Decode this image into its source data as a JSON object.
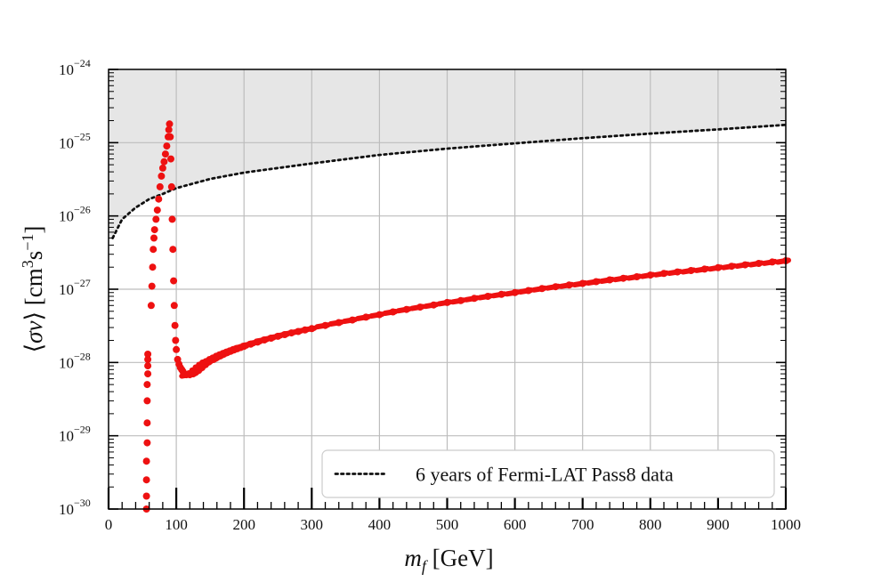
{
  "chart_data": {
    "type": "scatter",
    "title": "",
    "xlabel": "m_f [GeV]",
    "ylabel": "⟨σv⟩ [cm^3 s^-1]",
    "xlim": [
      0,
      1000
    ],
    "ylim": [
      1e-30,
      1e-24
    ],
    "yscale": "log",
    "grid": true,
    "x_ticks": [
      0,
      100,
      200,
      300,
      400,
      500,
      600,
      700,
      800,
      900,
      1000
    ],
    "y_tick_exponents": [
      -30,
      -29,
      -28,
      -27,
      -26,
      -25,
      -24
    ],
    "legend": {
      "placement": "lower-right",
      "entries": [
        "6 years of Fermi-LAT Pass8 data"
      ]
    },
    "colors": {
      "scan_points": "#ee1111",
      "limit_line": "#111111",
      "excluded_region": "#e6e6e6",
      "grid": "#bdbdbd"
    },
    "series": [
      {
        "name": "6 years of Fermi-LAT Pass8 data",
        "style": "dotted-line-with-shaded-excluded-region-above",
        "x": [
          6,
          20,
          40,
          60,
          80,
          100,
          150,
          200,
          300,
          400,
          500,
          600,
          700,
          800,
          900,
          1000
        ],
        "y": [
          5e-27,
          9e-27,
          1.3e-26,
          1.7e-26,
          2e-26,
          2.4e-26,
          3.2e-26,
          3.9e-26,
          5.2e-26,
          6.8e-26,
          8.3e-26,
          9.8e-26,
          1.15e-25,
          1.33e-25,
          1.52e-25,
          1.75e-25
        ]
      },
      {
        "style": "scatter",
        "x": [
          56,
          56,
          56,
          56,
          57,
          57,
          57,
          57,
          58,
          58,
          58,
          58,
          63,
          64,
          65,
          66,
          67,
          68,
          70,
          72,
          74,
          76,
          78,
          80,
          82,
          84,
          86,
          88,
          89,
          90,
          91,
          92,
          93,
          94,
          95,
          96,
          97,
          98,
          99,
          100,
          102,
          104,
          106,
          108,
          110,
          112,
          115,
          120,
          125,
          130,
          135,
          140,
          145,
          150,
          155,
          160,
          165,
          170,
          175,
          180,
          185,
          190,
          195,
          200,
          210,
          220,
          230,
          240,
          250,
          260,
          270,
          280,
          290,
          300,
          320,
          340,
          360,
          380,
          400,
          420,
          440,
          460,
          480,
          500,
          520,
          540,
          560,
          580,
          600,
          620,
          640,
          660,
          680,
          700,
          720,
          740,
          760,
          780,
          800,
          820,
          840,
          860,
          880,
          900,
          920,
          940,
          960,
          980,
          1000
        ],
        "y": [
          1e-30,
          1.5e-30,
          2.5e-30,
          4.5e-30,
          8e-30,
          1.5e-29,
          3e-29,
          5e-29,
          7e-29,
          9e-29,
          1.1e-28,
          1.3e-28,
          6e-28,
          1.1e-27,
          2e-27,
          3.5e-27,
          5e-27,
          6.5e-27,
          9e-27,
          1.2e-26,
          1.7e-26,
          2.5e-26,
          3.5e-26,
          4.5e-26,
          5.5e-26,
          7e-26,
          9e-26,
          1.2e-25,
          1.5e-25,
          1.8e-25,
          1.2e-25,
          6e-26,
          2.5e-26,
          9e-27,
          3.5e-27,
          1.3e-27,
          6e-28,
          3.2e-28,
          2e-28,
          1.5e-28,
          1.1e-28,
          9.5e-29,
          8.5e-29,
          8e-29,
          7.5e-29,
          7e-29,
          6.8e-29,
          6.8e-29,
          7e-29,
          7.5e-29,
          8.2e-29,
          9e-29,
          9.8e-29,
          1.05e-28,
          1.1e-28,
          1.17e-28,
          1.23e-28,
          1.3e-28,
          1.36e-28,
          1.42e-28,
          1.48e-28,
          1.54e-28,
          1.6e-28,
          1.66e-28,
          1.78e-28,
          1.9e-28,
          2.03e-28,
          2.15e-28,
          2.28e-28,
          2.4e-28,
          2.53e-28,
          2.65e-28,
          2.78e-28,
          2.9e-28,
          3.2e-28,
          3.5e-28,
          3.8e-28,
          4.15e-28,
          4.5e-28,
          4.9e-28,
          5.3e-28,
          5.7e-28,
          6.1e-28,
          6.6e-28,
          7e-28,
          7.5e-28,
          8e-28,
          8.5e-28,
          9e-28,
          9.6e-28,
          1.02e-27,
          1.08e-27,
          1.14e-27,
          1.2e-27,
          1.27e-27,
          1.34e-27,
          1.41e-27,
          1.48e-27,
          1.56e-27,
          1.64e-27,
          1.72e-27,
          1.8e-27,
          1.88e-27,
          1.97e-27,
          2.06e-27,
          2.15e-27,
          2.25e-27,
          2.35e-27,
          2.45e-27
        ]
      }
    ]
  }
}
